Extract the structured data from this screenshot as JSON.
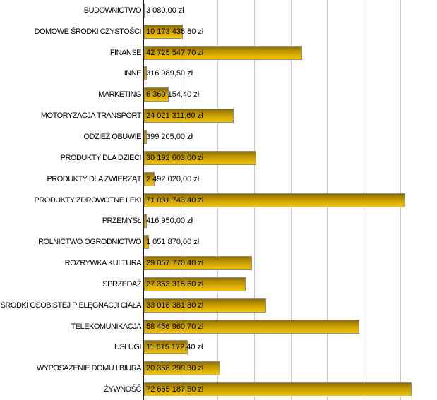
{
  "chart_data": {
    "type": "bar",
    "orientation": "horizontal",
    "title": "",
    "xlabel": "",
    "ylabel": "",
    "unit": "zł",
    "xlim": [
      0,
      80000000
    ],
    "gridline_interval": 10000000,
    "grid": "vertical-gridlines-visible",
    "legend": "none",
    "categories": [
      "BUDOWNICTWO",
      "DOMOWE ŚRODKI CZYSTOŚCI",
      "FINANSE",
      "INNE",
      "MARKETING",
      "MOTORYZACJA TRANSPORT",
      "ODZIEŻ OBUWIE",
      "PRODUKTY DLA DZIECI",
      "PRODUKTY DLA ZWIERZĄT",
      "PRODUKTY ZDROWOTNE LEKI",
      "PRZEMYSŁ",
      "ROLNICTWO OGRODNICTWO",
      "ROZRYWKA KULTURA",
      "SPRZEDAŻ",
      "ŚRODKI OSOBISTEJ PIELĘGNACJI CIAŁA",
      "TELEKOMUNIKACJA",
      "USŁUGI",
      "WYPOSAŻENIE DOMU I BIURA",
      "ŻYWNOŚĆ"
    ],
    "values": [
      3080.0,
      10173436.8,
      42725547.7,
      316989.5,
      6360154.4,
      24021311.6,
      399205.0,
      30192603.0,
      2492020.0,
      71031743.4,
      416950.0,
      1051870.0,
      29057770.4,
      27353315.6,
      33016381.8,
      58456960.7,
      11615172.4,
      20358299.3,
      72665187.5
    ],
    "value_labels": [
      "3 080,00 zł",
      "10 173 436,80 zł",
      "42 725 547,70 zł",
      "316 989,50 zł",
      "6 360 154,40 zł",
      "24 021 311,60 zł",
      "399 205,00 zł",
      "30 192 603,00 zł",
      "2 492 020,00 zł",
      "71 031 743,40 zł",
      "416 950,00 zł",
      "1 051 870,00 zł",
      "29 057 770,40 zł",
      "27 353 315,60 zł",
      "33 016 381,80 zł",
      "58 456 960,70 zł",
      "11 615 172,40 zł",
      "20 358 299,30 zł",
      "72 665 187,50 zł"
    ]
  },
  "style": {
    "background_color": "#ffffff",
    "bar_gradient_top": "#8a6e04",
    "bar_gradient_bottom": "#f0c400",
    "bar_border_color": "#8f8f8f",
    "gridline_color": "#c9c9c9",
    "axis_line_color": "#1c1c1c",
    "text_color": "#000000"
  }
}
